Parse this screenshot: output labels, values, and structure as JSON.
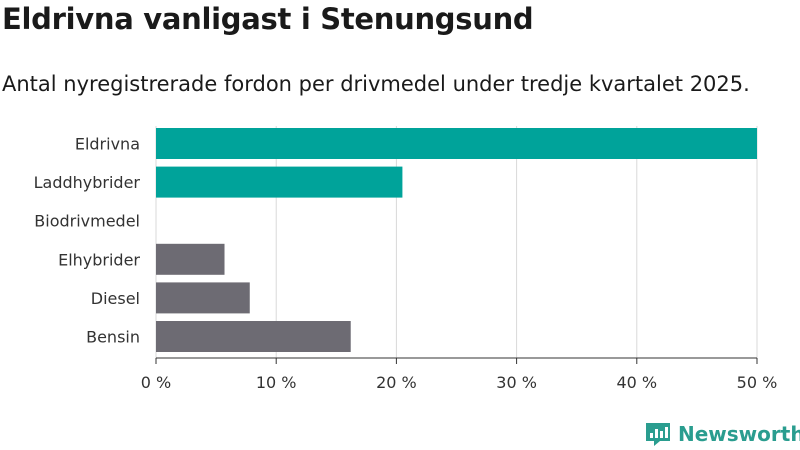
{
  "title": "Eldrivna vanligast i Stenungsund",
  "subtitle": "Antal nyregistrerade fordon per drivmedel under tredje kvartalet 2025.",
  "brand": "Newsworthy",
  "colors": {
    "teal": "#00a39a",
    "gray": "#6d6b73",
    "grid": "#d9d9d9",
    "brand": "#2a9d8f"
  },
  "chart_data": {
    "type": "bar",
    "orientation": "horizontal",
    "categories": [
      "Eldrivna",
      "Laddhybrider",
      "Biodrivmedel",
      "Elhybrider",
      "Diesel",
      "Bensin"
    ],
    "values": [
      50,
      20.5,
      0,
      5.7,
      7.8,
      16.2
    ],
    "bar_colors": [
      "teal",
      "teal",
      "teal",
      "gray",
      "gray",
      "gray"
    ],
    "xlim": [
      0,
      50
    ],
    "xticks": [
      0,
      10,
      20,
      30,
      40,
      50
    ],
    "xtick_labels": [
      "0 %",
      "10 %",
      "20 %",
      "30 %",
      "40 %",
      "50 %"
    ],
    "xlabel": "",
    "ylabel": "",
    "grid": true
  }
}
